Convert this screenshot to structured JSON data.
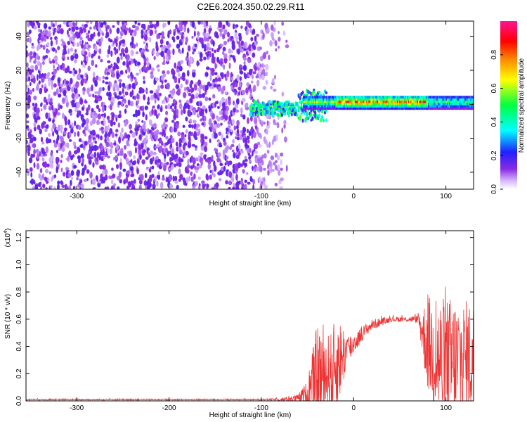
{
  "title": "C2E6.2024.350.02.29.R11",
  "chart_data": [
    {
      "type": "heatmap",
      "name": "spectrogram",
      "xlabel": "Height of straight line (km)",
      "ylabel": "Frequency (Hz)",
      "xlim": [
        -355,
        130
      ],
      "ylim": [
        -50,
        49
      ],
      "x_ticks": [
        -300,
        -200,
        -100,
        0,
        100
      ],
      "x_tick_labels": [
        "-300",
        "-200",
        "-100",
        "0",
        "100"
      ],
      "y_ticks": [
        -40,
        -20,
        0,
        20,
        40
      ],
      "y_tick_labels": [
        "-40",
        "-20",
        "0",
        "20",
        "40"
      ],
      "noise_region_km": [
        -355,
        -72
      ],
      "signal_band_hz": [
        -3,
        5
      ],
      "colorbar": {
        "label": "Normalized spectral amplitude",
        "range": [
          0,
          1
        ],
        "ticks": [
          0.0,
          0.2,
          0.4,
          0.6,
          0.8
        ],
        "tick_labels": [
          "0.0",
          "0.2",
          "0.4",
          "0.6",
          "0.8"
        ],
        "colors": [
          "#ffffff",
          "#d6b8ff",
          "#8a2be2",
          "#2020ff",
          "#00ffff",
          "#00ff40",
          "#ffff00",
          "#ff8000",
          "#ff0000",
          "#ff1493"
        ]
      }
    },
    {
      "type": "line",
      "name": "snr",
      "xlabel": "Height of straight line (km)",
      "ylabel": "SNR (10 * v/v)",
      "scale_note_base": "(x10",
      "scale_note_exp": "4",
      "scale_note_close": ")",
      "xlim": [
        -355,
        130
      ],
      "ylim": [
        0,
        1.25
      ],
      "x_ticks": [
        -300,
        -200,
        -100,
        0,
        100
      ],
      "x_tick_labels": [
        "-300",
        "-200",
        "-100",
        "0",
        "100"
      ],
      "y_ticks": [
        0.0,
        0.2,
        0.4,
        0.6,
        0.8,
        1.0,
        1.2
      ],
      "y_tick_labels": [
        "0.0",
        "0.2",
        "0.4",
        "0.6",
        "0.8",
        "1.0",
        "1.2"
      ],
      "line_color": "#ee3333",
      "envelope": {
        "x": [
          -355,
          -100,
          -80,
          -60,
          -50,
          -45,
          -40,
          -35,
          -30,
          -25,
          -20,
          -15,
          -10,
          -5,
          0,
          10,
          20,
          30,
          40,
          50,
          60,
          70,
          75,
          80,
          90,
          100,
          110,
          120,
          130
        ],
        "base": [
          0.01,
          0.01,
          0.01,
          0.02,
          0.05,
          0.1,
          0.15,
          0.18,
          0.2,
          0.2,
          0.25,
          0.3,
          0.35,
          0.38,
          0.42,
          0.5,
          0.56,
          0.58,
          0.6,
          0.6,
          0.6,
          0.6,
          0.5,
          0.42,
          0.32,
          0.22,
          0.28,
          0.3,
          0.32
        ],
        "amp": [
          0.005,
          0.005,
          0.01,
          0.03,
          0.1,
          0.25,
          0.4,
          0.45,
          0.3,
          0.3,
          0.35,
          0.3,
          0.2,
          0.12,
          0.08,
          0.05,
          0.04,
          0.03,
          0.02,
          0.02,
          0.02,
          0.03,
          0.2,
          0.35,
          0.45,
          0.55,
          0.5,
          0.45,
          0.42
        ]
      }
    }
  ]
}
